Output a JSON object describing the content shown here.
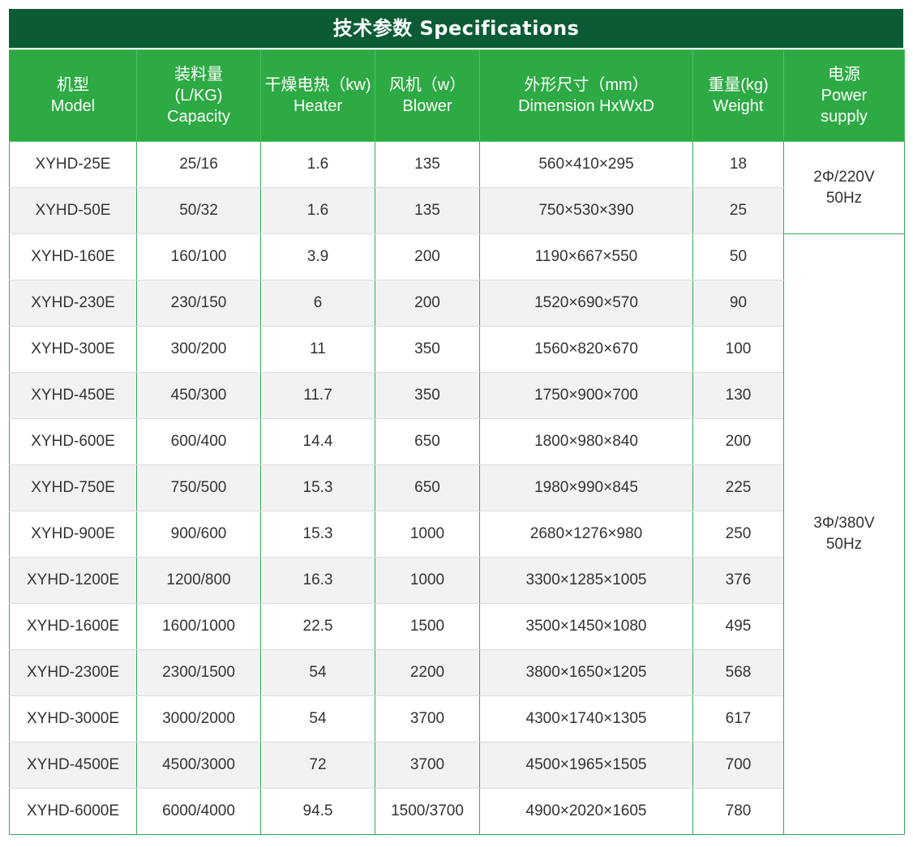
{
  "title": "技术参数 Specifications",
  "columns": [
    {
      "lines": [
        "机型",
        "Model"
      ]
    },
    {
      "lines": [
        "装料量",
        "(L/KG)",
        "Capacity"
      ]
    },
    {
      "lines": [
        "干燥电热（kw)",
        "Heater"
      ]
    },
    {
      "lines": [
        "风机（w）",
        "Blower"
      ]
    },
    {
      "lines": [
        "外形尺寸（mm）",
        "Dimension HxWxD"
      ]
    },
    {
      "lines": [
        "重量(kg)",
        "Weight"
      ]
    },
    {
      "lines": [
        "电源",
        "Power",
        "supply"
      ]
    }
  ],
  "rows": [
    [
      "XYHD-25E",
      "25/16",
      "1.6",
      "135",
      "560×410×295",
      "18"
    ],
    [
      "XYHD-50E",
      "50/32",
      "1.6",
      "135",
      "750×530×390",
      "25"
    ],
    [
      "XYHD-160E",
      "160/100",
      "3.9",
      "200",
      "1190×667×550",
      "50"
    ],
    [
      "XYHD-230E",
      "230/150",
      "6",
      "200",
      "1520×690×570",
      "90"
    ],
    [
      "XYHD-300E",
      "300/200",
      "11",
      "350",
      "1560×820×670",
      "100"
    ],
    [
      "XYHD-450E",
      "450/300",
      "11.7",
      "350",
      "1750×900×700",
      "130"
    ],
    [
      "XYHD-600E",
      "600/400",
      "14.4",
      "650",
      "1800×980×840",
      "200"
    ],
    [
      "XYHD-750E",
      "750/500",
      "15.3",
      "650",
      "1980×990×845",
      "225"
    ],
    [
      "XYHD-900E",
      "900/600",
      "15.3",
      "1000",
      "2680×1276×980",
      "250"
    ],
    [
      "XYHD-1200E",
      "1200/800",
      "16.3",
      "1000",
      "3300×1285×1005",
      "376"
    ],
    [
      "XYHD-1600E",
      "1600/1000",
      "22.5",
      "1500",
      "3500×1450×1080",
      "495"
    ],
    [
      "XYHD-2300E",
      "2300/1500",
      "54",
      "2200",
      "3800×1650×1205",
      "568"
    ],
    [
      "XYHD-3000E",
      "3000/2000",
      "54",
      "3700",
      "4300×1740×1305",
      "617"
    ],
    [
      "XYHD-4500E",
      "4500/3000",
      "72",
      "3700",
      "4500×1965×1505",
      "700"
    ],
    [
      "XYHD-6000E",
      "6000/4000",
      "94.5",
      "1500/3700",
      "4900×2020×1605",
      "780"
    ]
  ],
  "power_groups": [
    {
      "lines": [
        "2Φ/220V",
        "50Hz"
      ],
      "span": 2
    },
    {
      "lines": [
        "3Φ/380V",
        "50Hz"
      ],
      "span": 13
    }
  ],
  "colors": {
    "title_bg": "#0b5c34",
    "header_bg": "#2daa44",
    "border": "#3aa85a",
    "stripe": "#f2f2f2"
  }
}
